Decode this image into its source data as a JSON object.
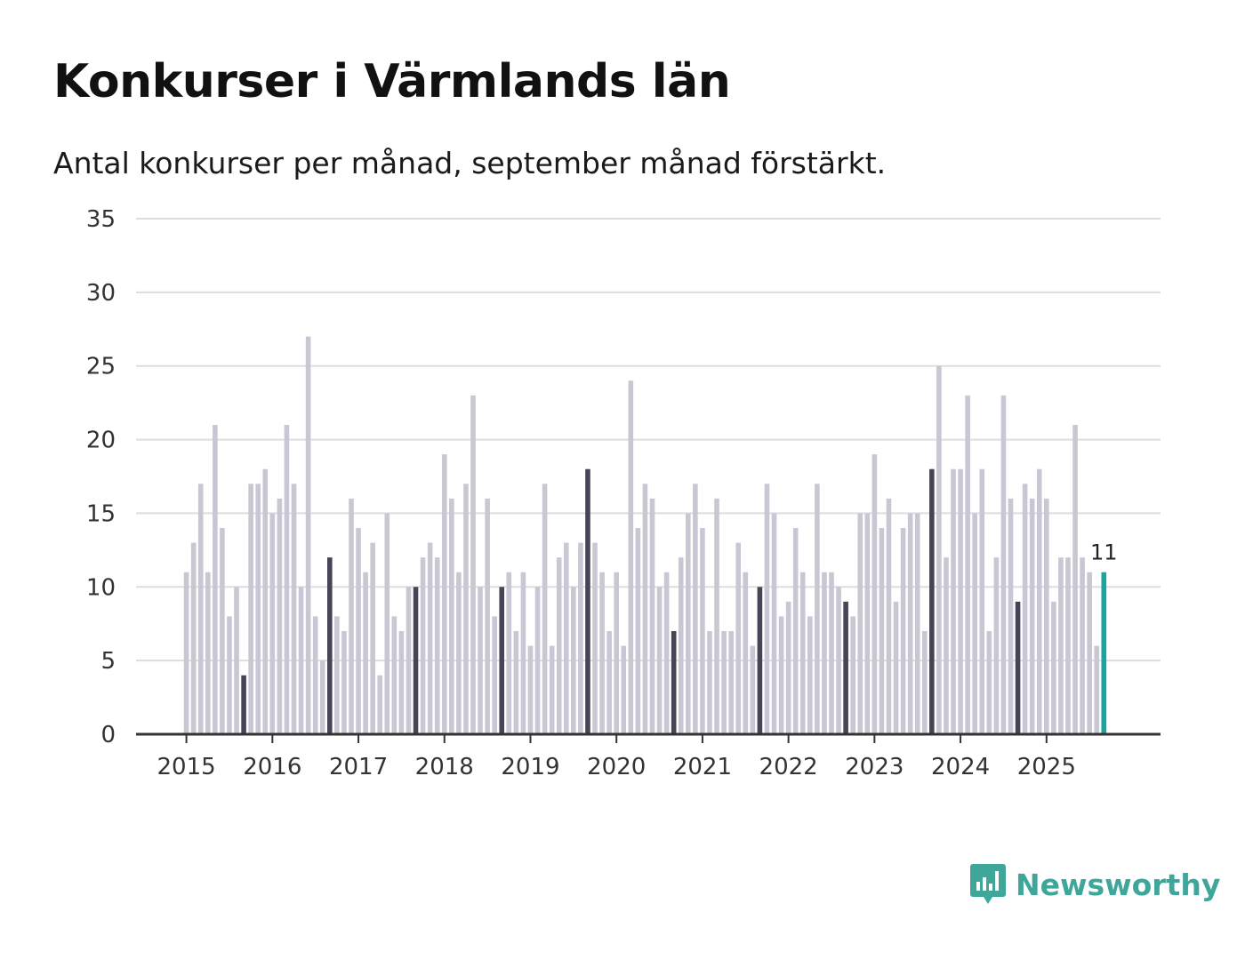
{
  "title": "Konkurser i Värmlands län",
  "subtitle": "Antal konkurser per månad, september månad förstärkt.",
  "brand": {
    "name": "Newsworthy",
    "color": "#3fa69a"
  },
  "colors": {
    "normal": "#c8c7d3",
    "highlight": "#464556",
    "current": "#1aa5a0",
    "grid": "#dddddd",
    "axis": "#333333"
  },
  "chart_data": {
    "type": "bar",
    "title": "Konkurser i Värmlands län",
    "subtitle": "Antal konkurser per månad, september månad förstärkt.",
    "xlabel": "",
    "ylabel": "",
    "ylim": [
      0,
      35
    ],
    "yticks": [
      "0",
      "5",
      "10",
      "15",
      "20",
      "25",
      "30",
      "35"
    ],
    "xtick_labels": [
      "2015",
      "2016",
      "2017",
      "2018",
      "2019",
      "2020",
      "2021",
      "2022",
      "2023",
      "2024",
      "2025"
    ],
    "start": "2015-01",
    "frequency": "monthly",
    "highlight_month": "september",
    "values": [
      11,
      13,
      17,
      11,
      21,
      14,
      8,
      10,
      4,
      17,
      17,
      18,
      15,
      16,
      21,
      17,
      10,
      27,
      8,
      5,
      12,
      8,
      7,
      16,
      14,
      11,
      13,
      4,
      15,
      8,
      7,
      10,
      10,
      12,
      13,
      12,
      19,
      16,
      11,
      17,
      23,
      10,
      16,
      8,
      10,
      11,
      7,
      11,
      6,
      10,
      17,
      6,
      12,
      13,
      10,
      13,
      18,
      13,
      11,
      7,
      11,
      6,
      24,
      14,
      17,
      16,
      10,
      11,
      7,
      12,
      15,
      17,
      14,
      7,
      16,
      7,
      7,
      13,
      11,
      6,
      10,
      17,
      15,
      8,
      9,
      14,
      11,
      8,
      17,
      11,
      11,
      10,
      9,
      8,
      15,
      15,
      19,
      14,
      16,
      9,
      14,
      15,
      15,
      7,
      18,
      25,
      12,
      18,
      18,
      23,
      15,
      18,
      7,
      12,
      23,
      16,
      9,
      17,
      16,
      18,
      16,
      9,
      12,
      12,
      21,
      12,
      11,
      6,
      11
    ],
    "last_value_label": "11"
  }
}
